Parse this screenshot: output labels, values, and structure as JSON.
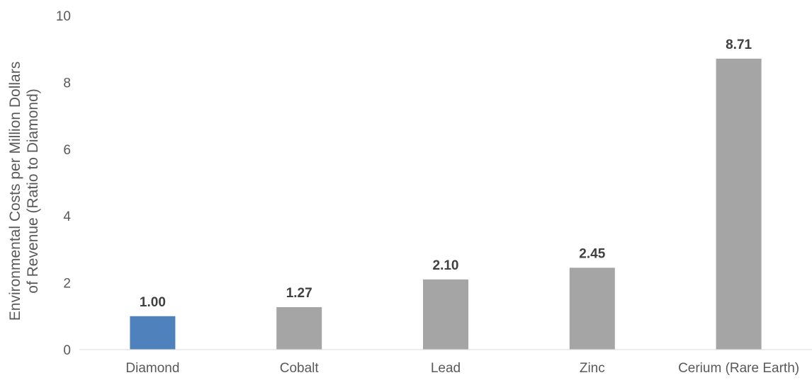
{
  "chart_data": {
    "type": "bar",
    "title": "",
    "xlabel": "",
    "ylabel_lines": [
      "Environmental Costs per Million Dollars",
      "of Revenue (Ratio to Diamond)"
    ],
    "categories": [
      "Diamond",
      "Cobalt",
      "Lead",
      "Zinc",
      "Cerium (Rare Earth)"
    ],
    "values": [
      1.0,
      1.27,
      2.1,
      2.45,
      8.71
    ],
    "data_labels": [
      "1.00",
      "1.27",
      "2.10",
      "2.45",
      "8.71"
    ],
    "bar_colors": [
      "#4f81bd",
      "#a5a5a5",
      "#a5a5a5",
      "#a5a5a5",
      "#a5a5a5"
    ],
    "ylim": [
      0,
      10
    ],
    "yticks": [
      0,
      2,
      4,
      6,
      8,
      10
    ],
    "ytick_labels": [
      "0",
      "2",
      "4",
      "6",
      "8",
      "10"
    ],
    "grid": false,
    "legend": "none",
    "axis_color": "#d9d9d9"
  }
}
